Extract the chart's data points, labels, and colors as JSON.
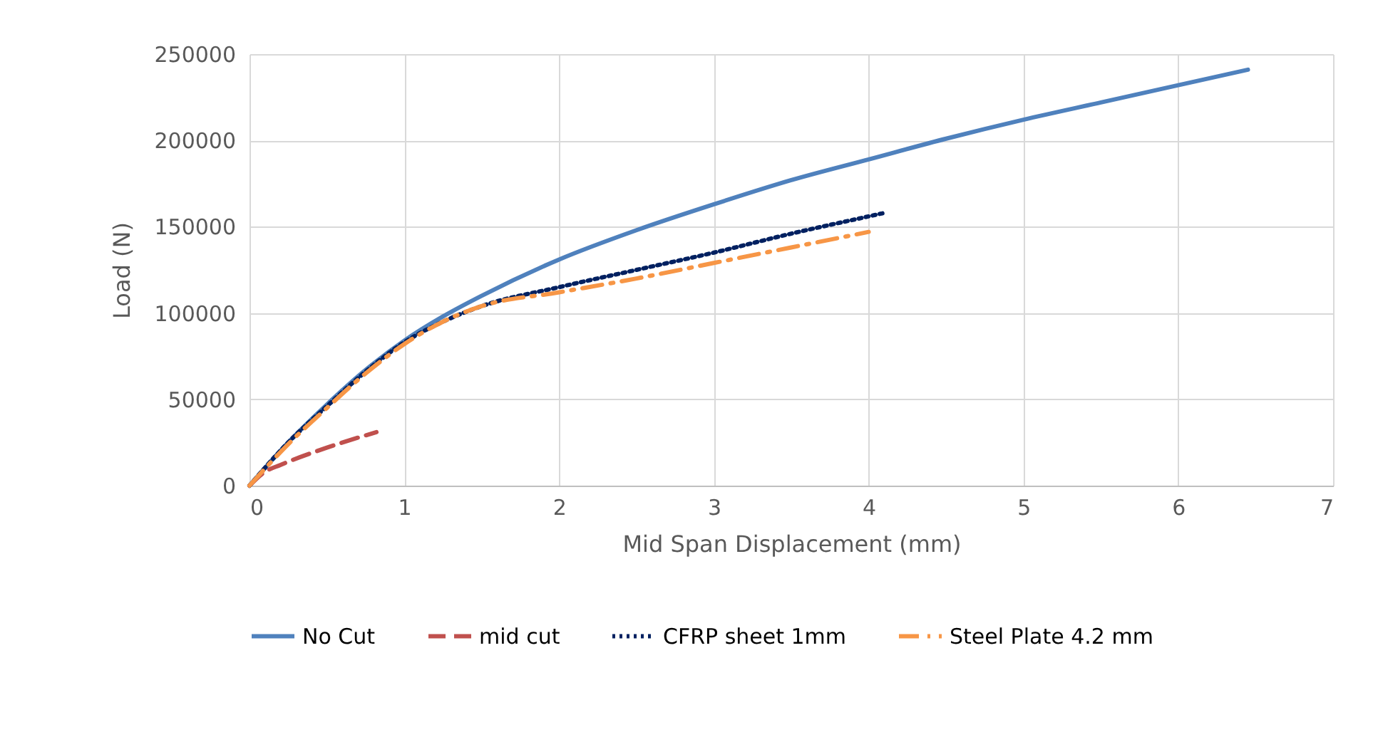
{
  "chart_data": {
    "type": "line",
    "xlabel": "Mid Span Displacement (mm)",
    "ylabel": "Load (N)",
    "xlim": [
      0,
      7
    ],
    "xticks": [
      0,
      1,
      2,
      3,
      4,
      5,
      6,
      7
    ],
    "ylim": [
      0,
      250000
    ],
    "yticks": [
      0,
      50000,
      100000,
      150000,
      200000,
      250000
    ],
    "grid": true,
    "legend": "bottom",
    "series": [
      {
        "name": "No Cut",
        "color": "#4f81bd",
        "line_style": "solid",
        "x": [
          0,
          0.25,
          0.5,
          0.75,
          1,
          1.25,
          1.5,
          2,
          2.5,
          3,
          3.5,
          4,
          4.5,
          5,
          5.5,
          6,
          6.45
        ],
        "values": [
          0,
          25000,
          47000,
          67000,
          84000,
          98000,
          110000,
          131000,
          148000,
          163000,
          177000,
          189000,
          201000,
          212000,
          222000,
          232000,
          241000
        ]
      },
      {
        "name": "mid cut",
        "color": "#c0504d",
        "line_style": "dashed",
        "x": [
          0,
          0.1,
          0.2,
          0.5,
          0.82
        ],
        "values": [
          0,
          8000,
          12000,
          22000,
          31000
        ]
      },
      {
        "name": "CFRP sheet 1mm",
        "color": "#002060",
        "line_style": "dotted",
        "x": [
          0,
          0.25,
          0.5,
          0.75,
          1,
          1.25,
          1.5,
          2,
          2.5,
          3,
          3.5,
          4,
          4.1
        ],
        "values": [
          0,
          25000,
          46000,
          66000,
          83000,
          95000,
          104000,
          115000,
          125000,
          135000,
          146000,
          156000,
          158000
        ]
      },
      {
        "name": "Steel Plate 4.2 mm",
        "color": "#f79646",
        "line_style": "dashdot",
        "x": [
          0,
          0.25,
          0.5,
          0.75,
          1,
          1.25,
          1.5,
          2,
          2.5,
          3,
          3.5,
          4
        ],
        "values": [
          0,
          24000,
          45000,
          65000,
          82000,
          95000,
          104000,
          112000,
          120000,
          129000,
          138000,
          147000
        ]
      }
    ]
  }
}
